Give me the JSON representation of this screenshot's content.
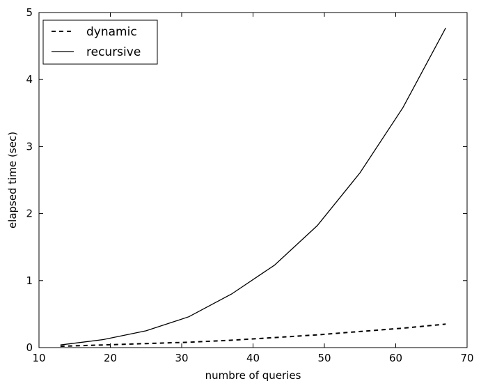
{
  "chart_data": {
    "type": "line",
    "title": "",
    "xlabel": "numbre of queries",
    "ylabel": "elapsed time (sec)",
    "xlim": [
      10,
      70
    ],
    "ylim": [
      0,
      5
    ],
    "xticks": [
      "10",
      "20",
      "30",
      "40",
      "50",
      "60",
      "70"
    ],
    "yticks": [
      "0",
      "1",
      "2",
      "3",
      "4",
      "5"
    ],
    "grid": false,
    "legend_position": "top-left",
    "x": [
      13,
      19,
      25,
      31,
      37,
      43,
      49,
      55,
      61,
      67
    ],
    "series": [
      {
        "name": "dynamic",
        "style": "dashed",
        "color": "#000000",
        "values": [
          0.02,
          0.04,
          0.06,
          0.08,
          0.11,
          0.15,
          0.19,
          0.24,
          0.29,
          0.35
        ]
      },
      {
        "name": "recursive",
        "style": "solid",
        "color": "#000000",
        "values": [
          0.04,
          0.12,
          0.25,
          0.46,
          0.8,
          1.23,
          1.82,
          2.61,
          3.58,
          4.77
        ]
      }
    ]
  }
}
